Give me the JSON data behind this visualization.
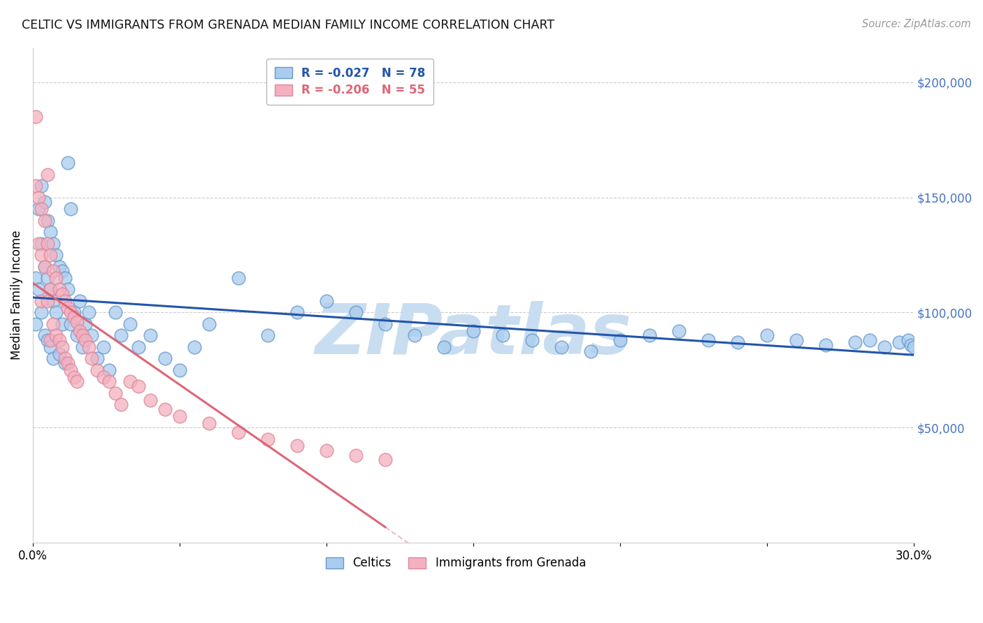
{
  "title": "CELTIC VS IMMIGRANTS FROM GRENADA MEDIAN FAMILY INCOME CORRELATION CHART",
  "source": "Source: ZipAtlas.com",
  "ylabel": "Median Family Income",
  "xlim": [
    0.0,
    0.3
  ],
  "ylim": [
    0,
    215000
  ],
  "grid_color": "#cccccc",
  "background_color": "#ffffff",
  "celtics_color": "#aaccee",
  "grenada_color": "#f4b0c0",
  "celtics_edge_color": "#6699cc",
  "grenada_edge_color": "#dd8899",
  "trend_celtics_color": "#2255aa",
  "trend_grenada_color": "#dd6677",
  "celtics_R": -0.027,
  "celtics_N": 78,
  "grenada_R": -0.206,
  "grenada_N": 55,
  "watermark": "ZIPatlas",
  "watermark_color": "#c8ddf0",
  "legend_label_celtics": "Celtics",
  "legend_label_grenada": "Immigrants from Grenada",
  "right_axis_color": "#4472c4",
  "celtics_x": [
    0.001,
    0.001,
    0.002,
    0.002,
    0.003,
    0.003,
    0.003,
    0.004,
    0.004,
    0.004,
    0.005,
    0.005,
    0.005,
    0.006,
    0.006,
    0.006,
    0.007,
    0.007,
    0.007,
    0.008,
    0.008,
    0.009,
    0.009,
    0.01,
    0.01,
    0.011,
    0.011,
    0.012,
    0.012,
    0.013,
    0.013,
    0.014,
    0.015,
    0.016,
    0.017,
    0.018,
    0.019,
    0.02,
    0.022,
    0.024,
    0.026,
    0.028,
    0.03,
    0.033,
    0.036,
    0.04,
    0.045,
    0.05,
    0.055,
    0.06,
    0.07,
    0.08,
    0.09,
    0.1,
    0.11,
    0.12,
    0.13,
    0.14,
    0.15,
    0.16,
    0.17,
    0.18,
    0.19,
    0.2,
    0.21,
    0.22,
    0.23,
    0.24,
    0.25,
    0.26,
    0.27,
    0.28,
    0.285,
    0.29,
    0.295,
    0.298,
    0.299,
    0.3
  ],
  "celtics_y": [
    115000,
    95000,
    145000,
    110000,
    155000,
    130000,
    100000,
    148000,
    120000,
    90000,
    140000,
    115000,
    88000,
    135000,
    110000,
    85000,
    130000,
    105000,
    80000,
    125000,
    100000,
    120000,
    82000,
    118000,
    95000,
    115000,
    78000,
    165000,
    110000,
    145000,
    95000,
    100000,
    90000,
    105000,
    85000,
    95000,
    100000,
    90000,
    80000,
    85000,
    75000,
    100000,
    90000,
    95000,
    85000,
    90000,
    80000,
    75000,
    85000,
    95000,
    115000,
    90000,
    100000,
    105000,
    100000,
    95000,
    90000,
    85000,
    92000,
    90000,
    88000,
    85000,
    83000,
    88000,
    90000,
    92000,
    88000,
    87000,
    90000,
    88000,
    86000,
    87000,
    88000,
    85000,
    87000,
    88000,
    86000,
    85000
  ],
  "grenada_x": [
    0.001,
    0.001,
    0.002,
    0.002,
    0.003,
    0.003,
    0.003,
    0.004,
    0.004,
    0.005,
    0.005,
    0.005,
    0.006,
    0.006,
    0.006,
    0.007,
    0.007,
    0.008,
    0.008,
    0.009,
    0.009,
    0.01,
    0.01,
    0.011,
    0.011,
    0.012,
    0.012,
    0.013,
    0.013,
    0.014,
    0.014,
    0.015,
    0.015,
    0.016,
    0.017,
    0.018,
    0.019,
    0.02,
    0.022,
    0.024,
    0.026,
    0.028,
    0.03,
    0.033,
    0.036,
    0.04,
    0.045,
    0.05,
    0.06,
    0.07,
    0.08,
    0.09,
    0.1,
    0.11,
    0.12
  ],
  "grenada_y": [
    185000,
    155000,
    150000,
    130000,
    145000,
    125000,
    105000,
    140000,
    120000,
    160000,
    130000,
    105000,
    125000,
    110000,
    88000,
    118000,
    95000,
    115000,
    90000,
    110000,
    88000,
    108000,
    85000,
    105000,
    80000,
    102000,
    78000,
    100000,
    75000,
    98000,
    72000,
    96000,
    70000,
    92000,
    90000,
    88000,
    85000,
    80000,
    75000,
    72000,
    70000,
    65000,
    60000,
    70000,
    68000,
    62000,
    58000,
    55000,
    52000,
    48000,
    45000,
    42000,
    40000,
    38000,
    36000
  ]
}
